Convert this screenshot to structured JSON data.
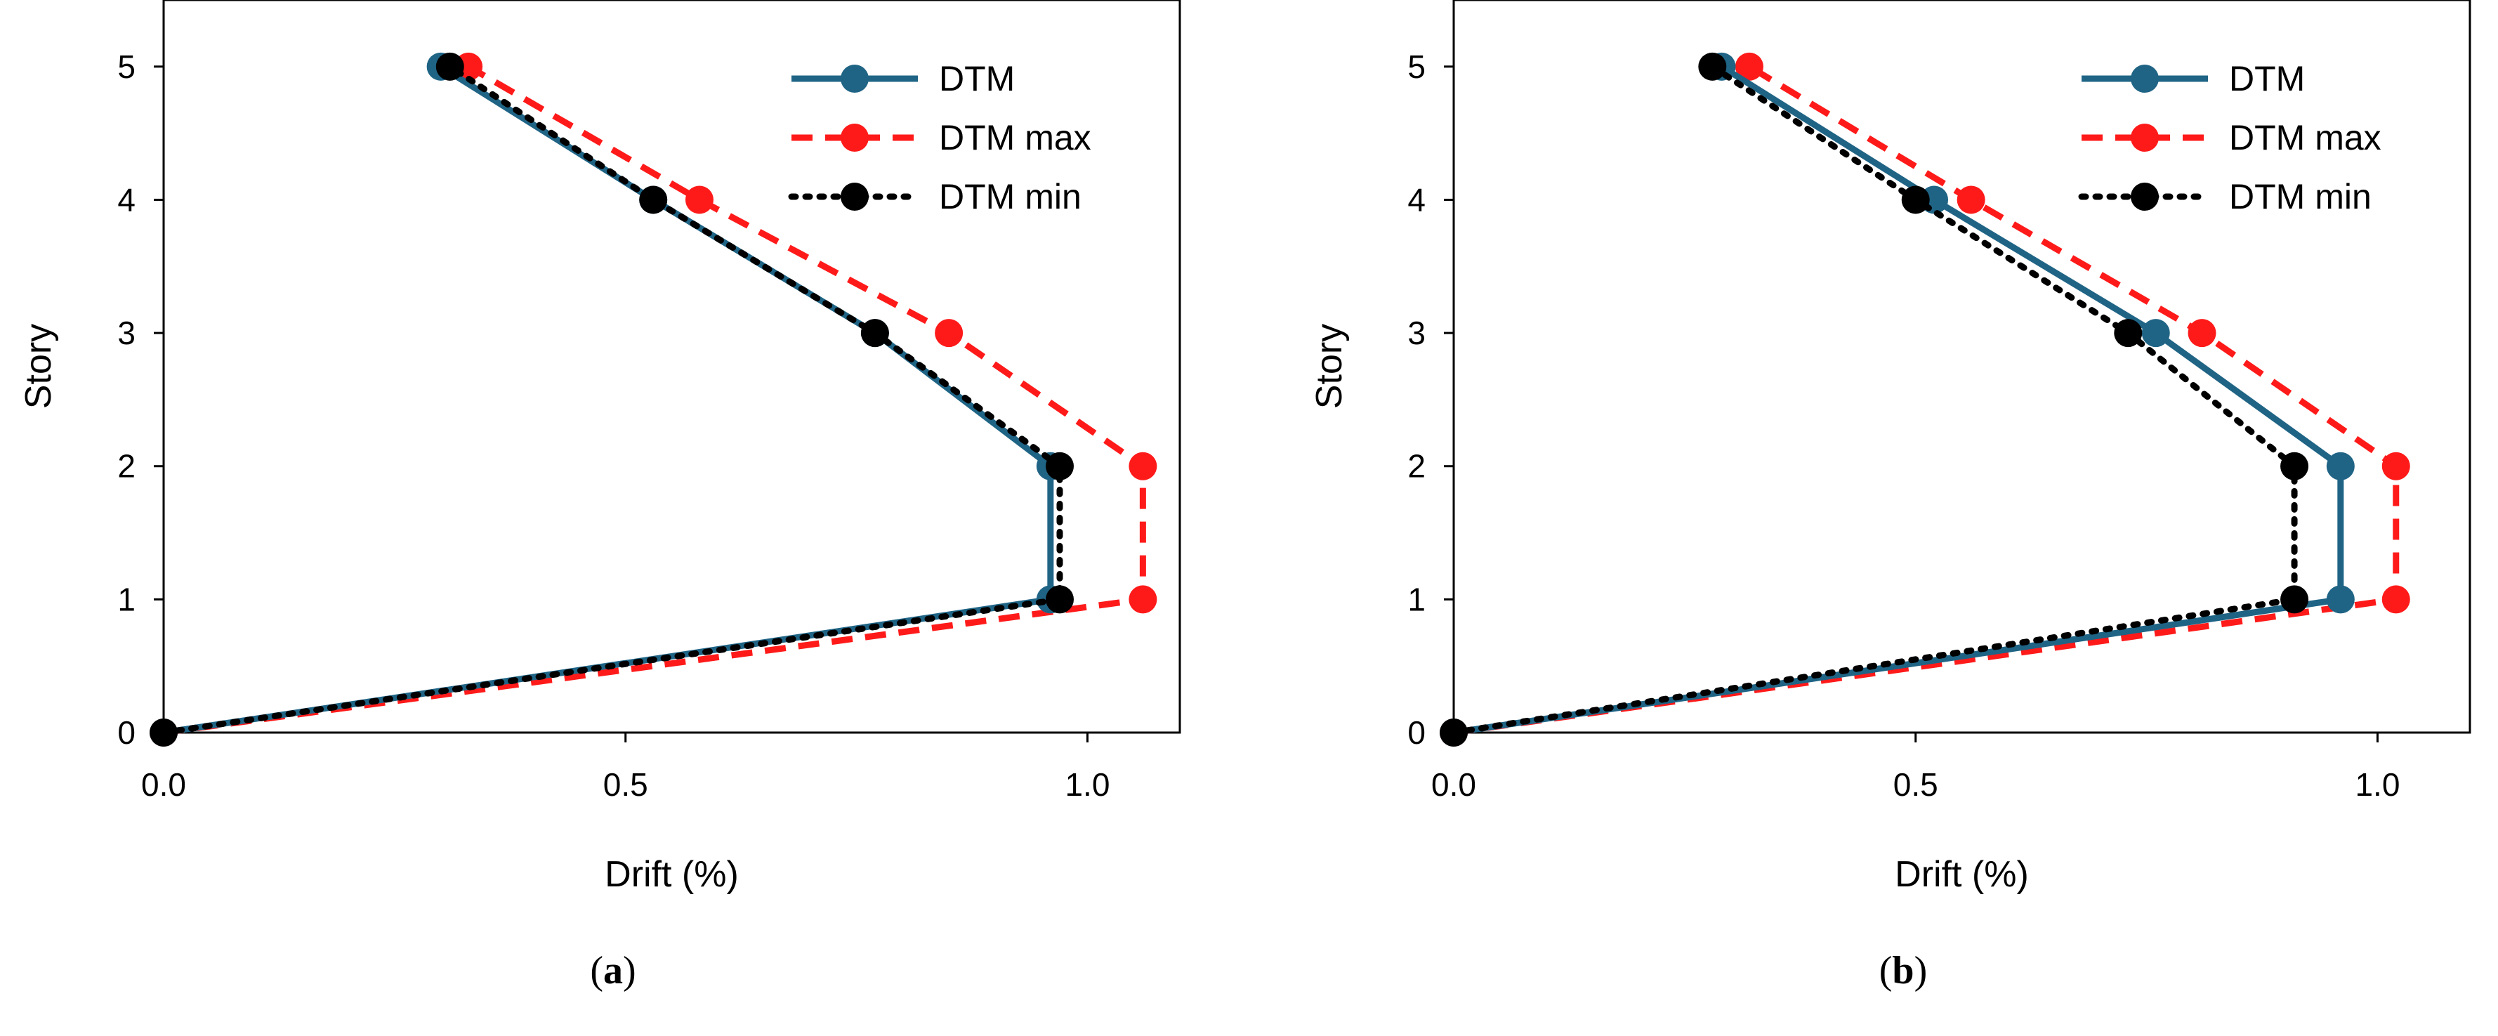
{
  "chart_data": [
    {
      "type": "line",
      "panel_label": {
        "open": "(",
        "letter": "a",
        "close": ")"
      },
      "xlabel": "Drift (%)",
      "ylabel": "Story",
      "xlim": [
        0.0,
        1.1
      ],
      "ylim": [
        0,
        5.5
      ],
      "xticks": [
        "0.0",
        "0.5",
        "1.0"
      ],
      "yticks": [
        "0",
        "1",
        "2",
        "3",
        "4",
        "5"
      ],
      "legend_position": "top-right",
      "grid": false,
      "series": [
        {
          "name": "DTM",
          "color": "#1f6485",
          "style": "solid",
          "x": [
            0.0,
            0.96,
            0.96,
            0.77,
            0.53,
            0.3
          ],
          "y": [
            0,
            1,
            2,
            3,
            4,
            5
          ]
        },
        {
          "name": "DTM max",
          "color": "#ff1a1a",
          "style": "dashed",
          "x": [
            0.0,
            1.06,
            1.06,
            0.85,
            0.58,
            0.33
          ],
          "y": [
            0,
            1,
            2,
            3,
            4,
            5
          ]
        },
        {
          "name": "DTM min",
          "color": "#000000",
          "style": "dotted",
          "x": [
            0.0,
            0.97,
            0.97,
            0.77,
            0.53,
            0.31
          ],
          "y": [
            0,
            1,
            2,
            3,
            4,
            5
          ]
        }
      ]
    },
    {
      "type": "line",
      "panel_label": {
        "open": "(",
        "letter": "b",
        "close": ")"
      },
      "xlabel": "Drift (%)",
      "ylabel": "Story",
      "xlim": [
        0.0,
        1.1
      ],
      "ylim": [
        0,
        5.5
      ],
      "xticks": [
        "0.0",
        "0.5",
        "1.0"
      ],
      "yticks": [
        "0",
        "1",
        "2",
        "3",
        "4",
        "5"
      ],
      "legend_position": "top-right",
      "grid": false,
      "series": [
        {
          "name": "DTM",
          "color": "#1f6485",
          "style": "solid",
          "x": [
            0.0,
            0.96,
            0.96,
            0.76,
            0.52,
            0.29
          ],
          "y": [
            0,
            1,
            2,
            3,
            4,
            5
          ]
        },
        {
          "name": "DTM max",
          "color": "#ff1a1a",
          "style": "dashed",
          "x": [
            0.0,
            1.02,
            1.02,
            0.81,
            0.56,
            0.32
          ],
          "y": [
            0,
            1,
            2,
            3,
            4,
            5
          ]
        },
        {
          "name": "DTM min",
          "color": "#000000",
          "style": "dotted",
          "x": [
            0.0,
            0.91,
            0.91,
            0.73,
            0.5,
            0.28
          ],
          "y": [
            0,
            1,
            2,
            3,
            4,
            5
          ]
        }
      ]
    }
  ]
}
